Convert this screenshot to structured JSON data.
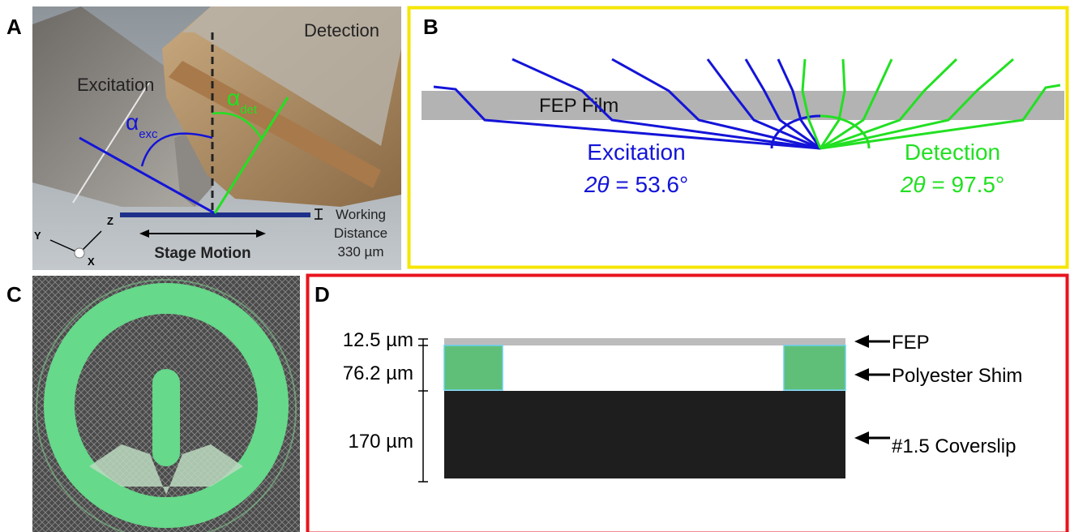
{
  "panels": {
    "a": {
      "label": "A",
      "excitation": "Excitation",
      "detection": "Detection",
      "alpha": "α",
      "exc": "exc",
      "det": "det",
      "working_distance": [
        "Working",
        "Distance",
        "330 µm"
      ],
      "stage_motion": "Stage Motion",
      "axes": {
        "z": "Z",
        "y": "Y",
        "x": "X"
      }
    },
    "b": {
      "label": "B",
      "film": "FEP Film",
      "excitation": {
        "name": "Excitation",
        "symbol": "2θ",
        "value": "= 53.6°"
      },
      "detection": {
        "name": "Detection",
        "symbol": "2θ",
        "value": "= 97.5°"
      }
    },
    "c": {
      "label": "C"
    },
    "d": {
      "label": "D",
      "thickness": [
        "12.5 µm",
        "76.2 µm",
        "170 µm"
      ],
      "layers": [
        "FEP",
        "Polyester Shim",
        "#1.5 Coverslip"
      ]
    }
  }
}
